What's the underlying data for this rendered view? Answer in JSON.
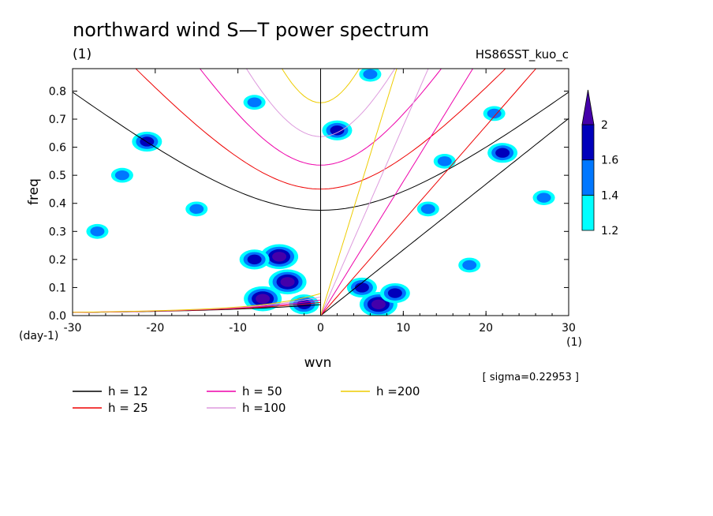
{
  "chart_data": {
    "type": "heatmap",
    "title": "northward wind S—T power spectrum",
    "subtitle": "(1)",
    "run_label": "HS86SST_kuo_c",
    "xlabel": "wvn",
    "ylabel": "freq",
    "x_unit": "(1)",
    "y_unit": "(day-1)",
    "xlim": [
      -30,
      30
    ],
    "ylim": [
      0,
      0.88
    ],
    "x_ticks": [
      -30,
      -20,
      -10,
      0,
      10,
      20,
      30
    ],
    "y_ticks": [
      0.0,
      0.1,
      0.2,
      0.3,
      0.4,
      0.5,
      0.6,
      0.7,
      0.8
    ],
    "sigma_text": "[ sigma=0.22953 ]",
    "colorbar": {
      "levels": [
        1.2,
        1.4,
        1.6,
        2
      ],
      "colors": [
        "#00ffff",
        "#0077ff",
        "#0000bb",
        "#4400aa"
      ]
    },
    "dispersion_curves": [
      {
        "label": "h = 12",
        "h": 12,
        "color": "#000000"
      },
      {
        "label": "h = 25",
        "h": 25,
        "color": "#ee0000"
      },
      {
        "label": "h = 50",
        "h": 50,
        "color": "#ee00aa"
      },
      {
        "label": "h =100",
        "h": 100,
        "color": "#dd99dd"
      },
      {
        "label": "h =200",
        "h": 200,
        "color": "#eecc00"
      }
    ],
    "regions": [
      {
        "x": -7,
        "y": 0.06,
        "level": 2
      },
      {
        "x": -4,
        "y": 0.12,
        "level": 2
      },
      {
        "x": -5,
        "y": 0.21,
        "level": 2
      },
      {
        "x": -8,
        "y": 0.2,
        "level": 1.6
      },
      {
        "x": -2,
        "y": 0.04,
        "level": 1.6
      },
      {
        "x": 7,
        "y": 0.04,
        "level": 2
      },
      {
        "x": 5,
        "y": 0.1,
        "level": 1.6
      },
      {
        "x": 9,
        "y": 0.08,
        "level": 1.6
      },
      {
        "x": 2,
        "y": 0.66,
        "level": 1.6
      },
      {
        "x": -21,
        "y": 0.62,
        "level": 1.6
      },
      {
        "x": 22,
        "y": 0.58,
        "level": 1.6
      },
      {
        "x": -24,
        "y": 0.5,
        "level": 1.4
      },
      {
        "x": 15,
        "y": 0.55,
        "level": 1.4
      },
      {
        "x": -8,
        "y": 0.76,
        "level": 1.4
      },
      {
        "x": 21,
        "y": 0.72,
        "level": 1.4
      },
      {
        "x": 27,
        "y": 0.42,
        "level": 1.4
      },
      {
        "x": 13,
        "y": 0.38,
        "level": 1.4
      },
      {
        "x": -15,
        "y": 0.38,
        "level": 1.4
      },
      {
        "x": 18,
        "y": 0.18,
        "level": 1.4
      },
      {
        "x": -27,
        "y": 0.3,
        "level": 1.4
      },
      {
        "x": 6,
        "y": 0.86,
        "level": 1.4
      }
    ]
  },
  "legend": {
    "entries": [
      {
        "label": "h = 12",
        "color": "#000000"
      },
      {
        "label": "h = 25",
        "color": "#ee0000"
      },
      {
        "label": "h = 50",
        "color": "#ee00aa"
      },
      {
        "label": "h =100",
        "color": "#dd99dd"
      },
      {
        "label": "h =200",
        "color": "#eecc00"
      }
    ]
  }
}
